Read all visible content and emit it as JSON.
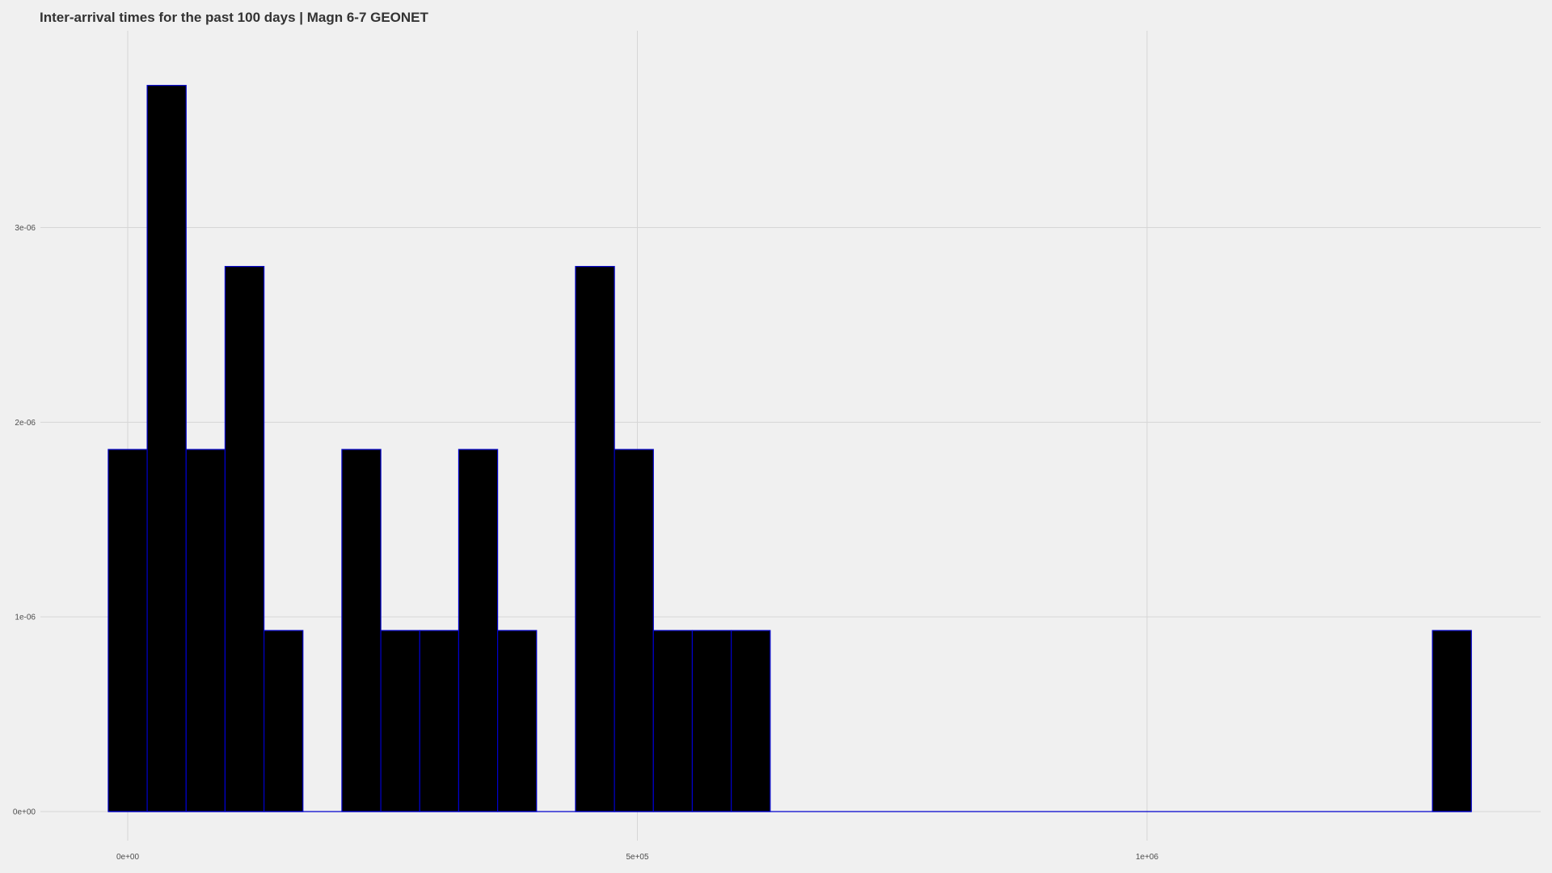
{
  "chart_data": {
    "type": "bar",
    "title": "Inter-arrival times for the past 100 days | Magn 6-7 GEONET",
    "xlabel": "",
    "ylabel": "",
    "bar_fill": "#000000",
    "bar_outline": "#0000cc",
    "background": "#f0f0f0",
    "grid_color": "#d6d6d6",
    "x_ticks": [
      {
        "value": 0,
        "label": "0e+00"
      },
      {
        "value": 500000,
        "label": "5e+05"
      },
      {
        "value": 1000000,
        "label": "1e+06"
      }
    ],
    "y_ticks": [
      {
        "value": 0,
        "label": "0e+00"
      },
      {
        "value": 1e-06,
        "label": "1e-06"
      },
      {
        "value": 2e-06,
        "label": "2e-06"
      },
      {
        "value": 3e-06,
        "label": "3e-06"
      }
    ],
    "bin_width": 38200,
    "bins": [
      {
        "x_start": -19100,
        "density": 1.86e-06
      },
      {
        "x_start": 19100,
        "density": 3.73e-06
      },
      {
        "x_start": 57300,
        "density": 1.86e-06
      },
      {
        "x_start": 95500,
        "density": 2.8e-06
      },
      {
        "x_start": 133700,
        "density": 9.3e-07
      },
      {
        "x_start": 171900,
        "density": 0
      },
      {
        "x_start": 210100,
        "density": 1.86e-06
      },
      {
        "x_start": 248300,
        "density": 9.3e-07
      },
      {
        "x_start": 286500,
        "density": 9.3e-07
      },
      {
        "x_start": 324700,
        "density": 1.86e-06
      },
      {
        "x_start": 362900,
        "density": 9.3e-07
      },
      {
        "x_start": 401100,
        "density": 0
      },
      {
        "x_start": 439300,
        "density": 2.8e-06
      },
      {
        "x_start": 477500,
        "density": 1.86e-06
      },
      {
        "x_start": 515700,
        "density": 9.3e-07
      },
      {
        "x_start": 553900,
        "density": 9.3e-07
      },
      {
        "x_start": 592100,
        "density": 9.3e-07
      },
      {
        "x_start": 630300,
        "density": 0
      },
      {
        "x_start": 1280000,
        "density": 9.3e-07
      }
    ],
    "xlim": [
      -125000,
      1385000
    ],
    "ylim": [
      0,
      3.82e-06
    ],
    "grid": true,
    "legend": "none"
  }
}
